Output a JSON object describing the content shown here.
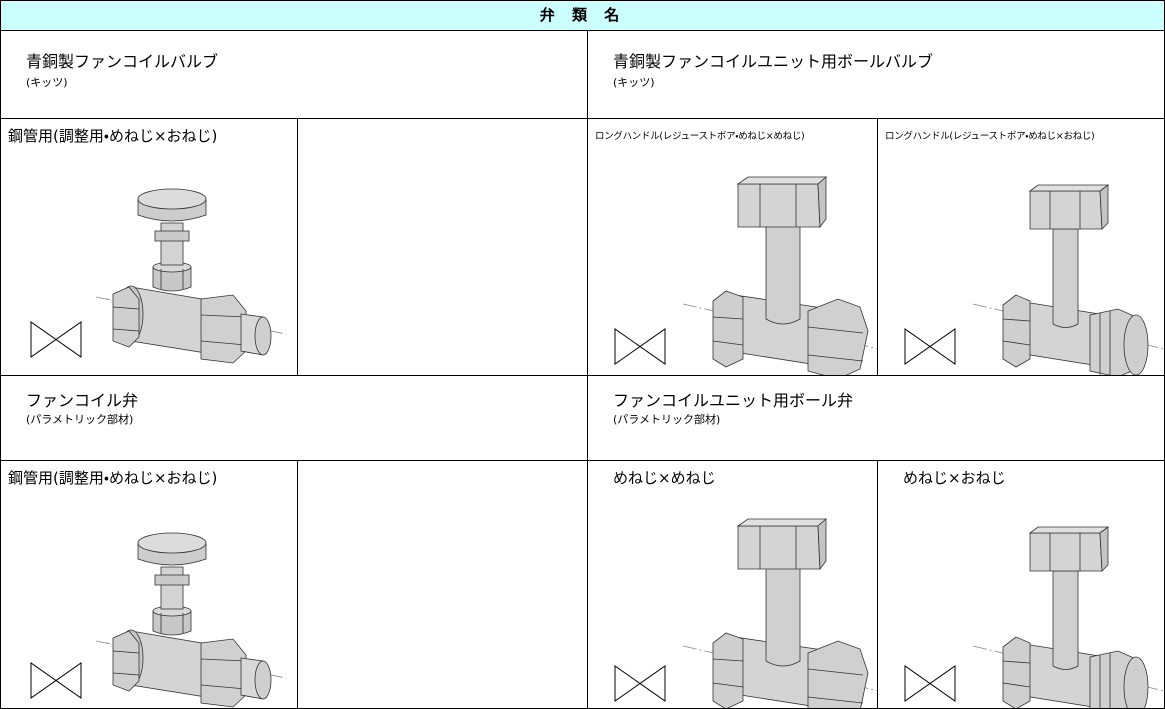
{
  "header": {
    "title": "弁 類 名"
  },
  "sections": [
    {
      "title": "青銅製ファンコイルバルブ",
      "maker": "(キッツ)",
      "items": [
        {
          "label": "鋼管用(調整用・めねじ×おねじ)"
        }
      ]
    },
    {
      "title": "青銅製ファンコイルユニット用ボールバルブ",
      "maker": "(キッツ)",
      "items": [
        {
          "label": "ロングハンドル(レジューストボア・めねじ×めねじ)"
        },
        {
          "label": "ロングハンドル(レジューストボア・めねじ×おねじ)"
        }
      ]
    },
    {
      "title": "ファンコイル弁",
      "maker": "(パラメトリック部材)",
      "items": [
        {
          "label": "鋼管用(調整用・めねじ×おねじ)"
        }
      ]
    },
    {
      "title": "ファンコイルユニット用ボール弁",
      "maker": "(パラメトリック部材)",
      "items": [
        {
          "label": "めねじ×めねじ"
        },
        {
          "label": "めねじ×おねじ"
        }
      ]
    }
  ]
}
